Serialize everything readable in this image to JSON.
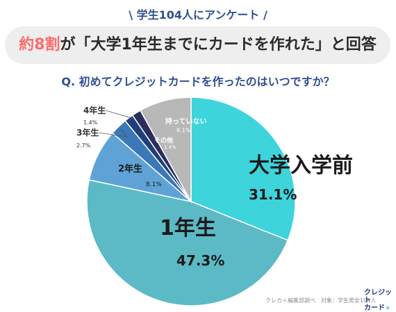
{
  "survey_tag": "\\ 学生104人にアンケート /",
  "headline": {
    "highlight": "約8割",
    "rest": "が「大学1年生までにカードを作れた」と回答"
  },
  "question": "Q. 初めてクレジットカードを作ったのはいつですか？",
  "footer": {
    "source": "クレカ＋編集部調べ　対象：学生男女104人"
  },
  "brand": {
    "line1": "クレジット",
    "line2": "カード",
    "plus": "+"
  },
  "chart_data": {
    "type": "pie",
    "slices": [
      {
        "label": "大学入学前",
        "value": 31.1,
        "display": "31.1%",
        "color": "#3dd4dc"
      },
      {
        "label": "1年生",
        "value": 47.3,
        "display": "47.3%",
        "color": "#5bbac5"
      },
      {
        "label": "2年生",
        "value": 8.1,
        "display": "8.1%",
        "color": "#5fa3d6"
      },
      {
        "label": "3年生",
        "value": 2.7,
        "display": "2.7%",
        "color": "#3a78b8"
      },
      {
        "label": "4年生",
        "value": 1.4,
        "display": "1.4%",
        "color": "#1f3f7a"
      },
      {
        "label": "その他",
        "value": 1.4,
        "display": "1.4%",
        "color": "#2b2d5c"
      },
      {
        "label": "持っていない",
        "value": 8.1,
        "display": "8.1%",
        "color": "#b8b8b8"
      }
    ]
  }
}
